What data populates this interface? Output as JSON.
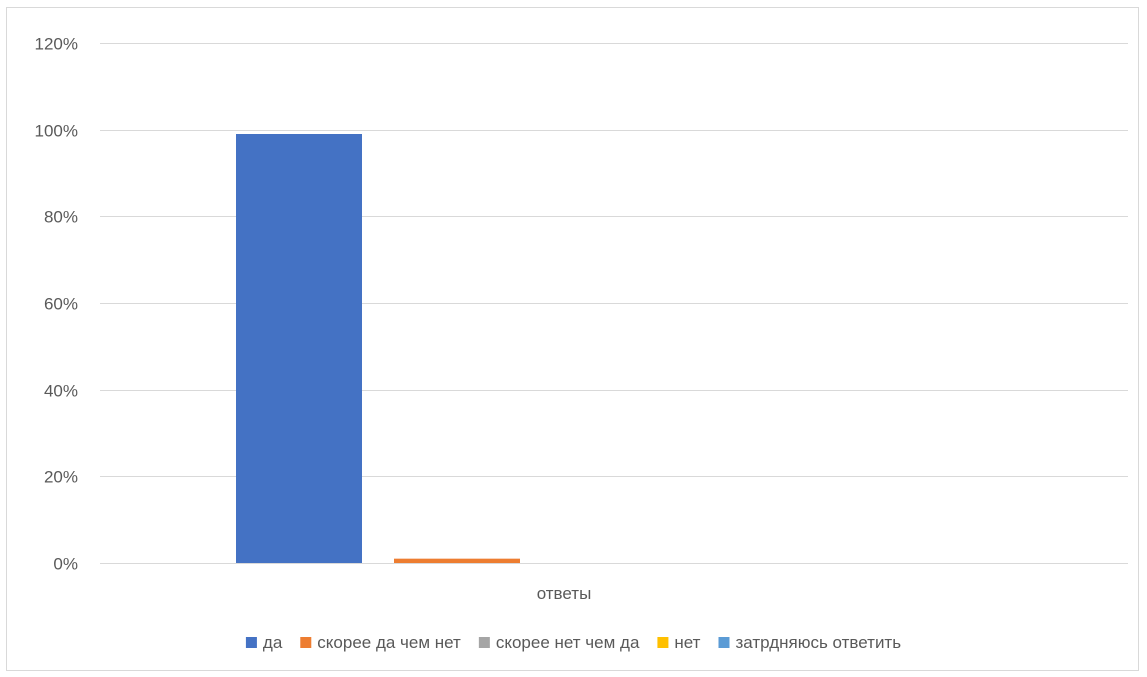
{
  "chart_data": {
    "type": "bar",
    "categories": [
      "ответы"
    ],
    "series": [
      {
        "name": "да",
        "values": [
          0.99
        ],
        "color": "#4472C4"
      },
      {
        "name": "скорее да чем нет",
        "values": [
          0.01
        ],
        "color": "#ED7D31"
      },
      {
        "name": "скорее нет чем да",
        "values": [
          0
        ],
        "color": "#A5A5A5"
      },
      {
        "name": "нет",
        "values": [
          0
        ],
        "color": "#FFC000"
      },
      {
        "name": "затрдняюсь ответить",
        "values": [
          0
        ],
        "color": "#5B9BD5"
      }
    ],
    "yticks": [
      "0%",
      "20%",
      "40%",
      "60%",
      "80%",
      "100%",
      "120%"
    ],
    "ylim": [
      0,
      1.2
    ],
    "ylabel_format": "percent",
    "grid": true,
    "legend_position": "bottom",
    "gridline_color": "#d9d9d9",
    "text_color": "#595959"
  }
}
